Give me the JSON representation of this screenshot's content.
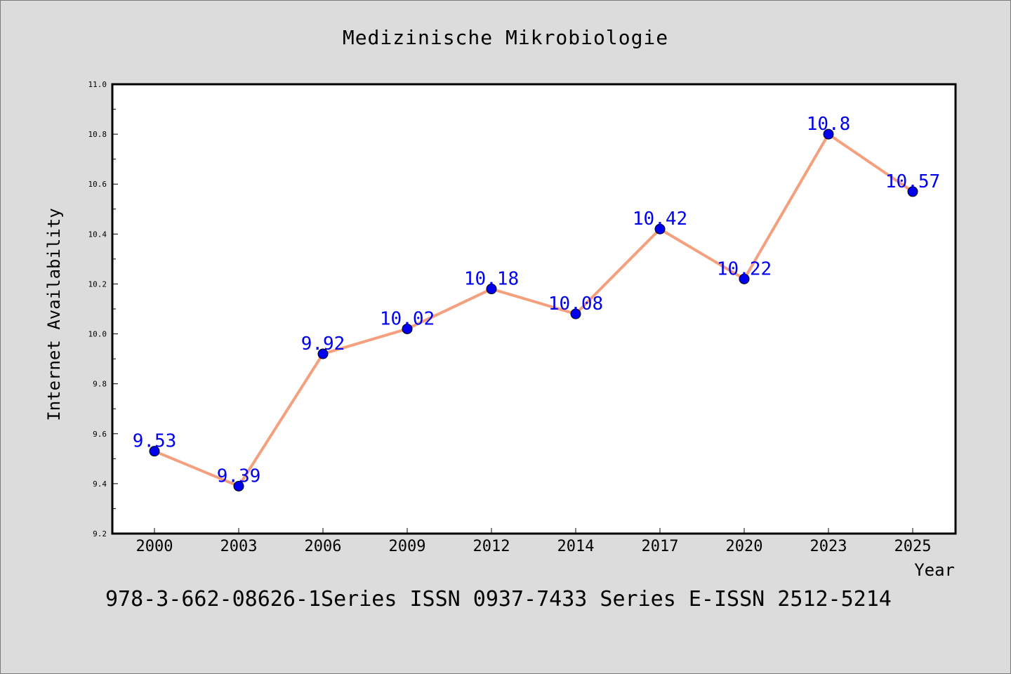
{
  "chart_data": {
    "type": "line",
    "title": "Medizinische Mikrobiologie",
    "xlabel": "Year",
    "ylabel": "Internet Availability",
    "categories": [
      "2000",
      "2003",
      "2006",
      "2009",
      "2012",
      "2014",
      "2017",
      "2020",
      "2023",
      "2025"
    ],
    "series": [
      {
        "values": [
          9.53,
          9.39,
          9.92,
          10.02,
          10.18,
          10.08,
          10.42,
          10.22,
          10.8,
          10.57
        ]
      }
    ],
    "value_labels": [
      "9.53",
      "9.39",
      "9.92",
      "10.02",
      "10.18",
      "10.08",
      "10.42",
      "10.22",
      "10.8",
      "10.57"
    ],
    "ylim": [
      9.2,
      11.0
    ],
    "yticks": [
      "9.2",
      "9.4",
      "9.6",
      "9.8",
      "10.0",
      "10.2",
      "10.4",
      "10.6",
      "10.8",
      "11.0"
    ],
    "grid": false,
    "legend": "none",
    "colors": {
      "line": "#f4a07e",
      "marker": "#0000ee",
      "label": "#0000ee"
    }
  },
  "footer": "978-3-662-08626-1Series ISSN 0937-7433 Series E-ISSN 2512-5214"
}
